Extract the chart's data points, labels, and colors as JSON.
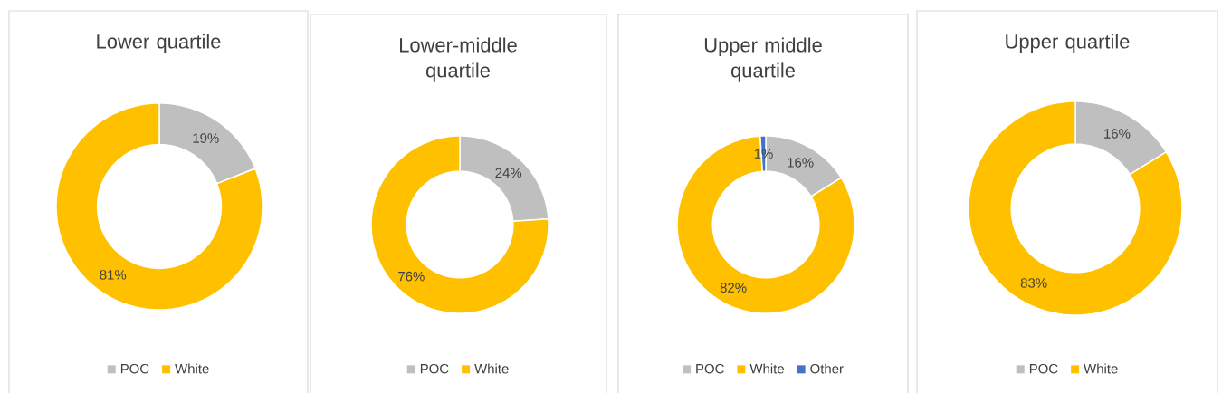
{
  "chart_data": [
    {
      "type": "donut",
      "title": "Lower quartile",
      "categories": [
        "POC",
        "White"
      ],
      "values": [
        19,
        81
      ],
      "colors": [
        "#bfbfbf",
        "#ffc000"
      ],
      "value_labels": [
        "19%",
        "81%"
      ],
      "legend": "bottom"
    },
    {
      "type": "donut",
      "title": "Lower-middle quartile",
      "categories": [
        "POC",
        "White"
      ],
      "values": [
        24,
        76
      ],
      "colors": [
        "#bfbfbf",
        "#ffc000"
      ],
      "value_labels": [
        "24%",
        "76%"
      ],
      "legend": "bottom"
    },
    {
      "type": "donut",
      "title": "Upper middle quartile",
      "categories": [
        "POC",
        "White",
        "Other"
      ],
      "values": [
        16,
        82,
        1
      ],
      "colors": [
        "#bfbfbf",
        "#ffc000",
        "#4472c4"
      ],
      "value_labels": [
        "16%",
        "82%",
        "1%"
      ],
      "legend": "bottom"
    },
    {
      "type": "donut",
      "title": "Upper quartile",
      "categories": [
        "POC",
        "White"
      ],
      "values": [
        16,
        83
      ],
      "colors": [
        "#bfbfbf",
        "#ffc000"
      ],
      "value_labels": [
        "16%",
        "83%"
      ],
      "legend": "bottom"
    }
  ]
}
